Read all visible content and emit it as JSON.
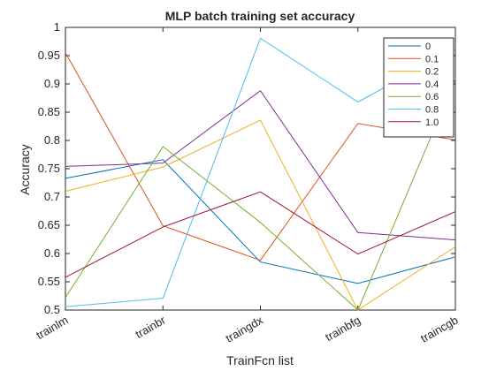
{
  "chart_data": {
    "type": "line",
    "title": "MLP batch training set accuracy",
    "xlabel": "TrainFcn list",
    "ylabel": "Accuracy",
    "categories": [
      "trainlm",
      "trainbr",
      "traingdx",
      "trainbfg",
      "traincgb"
    ],
    "ylim": [
      0.5,
      1.0
    ],
    "yticks": [
      "0.5",
      "0.55",
      "0.6",
      "0.65",
      "0.7",
      "0.75",
      "0.8",
      "0.85",
      "0.9",
      "0.95",
      "1"
    ],
    "grid": false,
    "legend_position": "top-right",
    "series": [
      {
        "name": "0",
        "color": "#0072BD",
        "values": [
          0.733,
          0.766,
          0.585,
          0.547,
          0.594
        ]
      },
      {
        "name": "0.1",
        "color": "#D95319",
        "values": [
          0.955,
          0.649,
          0.588,
          0.83,
          0.801
        ]
      },
      {
        "name": "0.2",
        "color": "#EDB120",
        "values": [
          0.71,
          0.753,
          0.836,
          0.5,
          0.612
        ]
      },
      {
        "name": "0.4",
        "color": "#7E2F8E",
        "values": [
          0.754,
          0.76,
          0.888,
          0.637,
          0.624
        ]
      },
      {
        "name": "0.6",
        "color": "#77AC30",
        "values": [
          0.522,
          0.789,
          0.655,
          0.5,
          0.909
        ]
      },
      {
        "name": "0.8",
        "color": "#4DBEEE",
        "values": [
          0.506,
          0.521,
          0.981,
          0.868,
          0.962
        ]
      },
      {
        "name": "1.0",
        "color": "#A2142F",
        "values": [
          0.558,
          0.647,
          0.709,
          0.599,
          0.674
        ]
      }
    ]
  }
}
